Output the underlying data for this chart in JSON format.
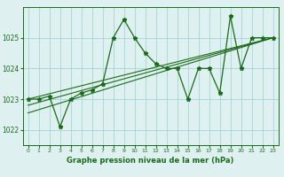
{
  "hours": [
    0,
    1,
    2,
    3,
    4,
    5,
    6,
    7,
    8,
    9,
    10,
    11,
    12,
    13,
    14,
    15,
    16,
    17,
    18,
    19,
    20,
    21,
    22,
    23
  ],
  "pressure": [
    1023.0,
    1023.0,
    1023.1,
    1022.1,
    1023.0,
    1023.2,
    1023.3,
    1023.5,
    1025.0,
    1025.6,
    1025.0,
    1024.5,
    1024.15,
    1024.0,
    1024.0,
    1023.0,
    1024.0,
    1024.0,
    1023.2,
    1025.7,
    1024.0,
    1025.0,
    1025.0,
    1025.0
  ],
  "line_color": "#1a6b1a",
  "marker_color": "#1a6b1a",
  "bg_color": "#dff0f0",
  "grid_color": "#9ecece",
  "xlabel": "Graphe pression niveau de la mer (hPa)",
  "ylim": [
    1021.5,
    1026.0
  ],
  "xlim": [
    -0.5,
    23.5
  ],
  "yticks": [
    1022,
    1023,
    1024,
    1025
  ],
  "xticks": [
    0,
    1,
    2,
    3,
    4,
    5,
    6,
    7,
    8,
    9,
    10,
    11,
    12,
    13,
    14,
    15,
    16,
    17,
    18,
    19,
    20,
    21,
    22,
    23
  ],
  "trend_lines": [
    {
      "x0": 0,
      "y0": 1022.55,
      "x1": 23,
      "y1": 1025.0
    },
    {
      "x0": 0,
      "y0": 1022.8,
      "x1": 23,
      "y1": 1025.0
    },
    {
      "x0": 0,
      "y0": 1023.0,
      "x1": 23,
      "y1": 1025.0
    }
  ]
}
